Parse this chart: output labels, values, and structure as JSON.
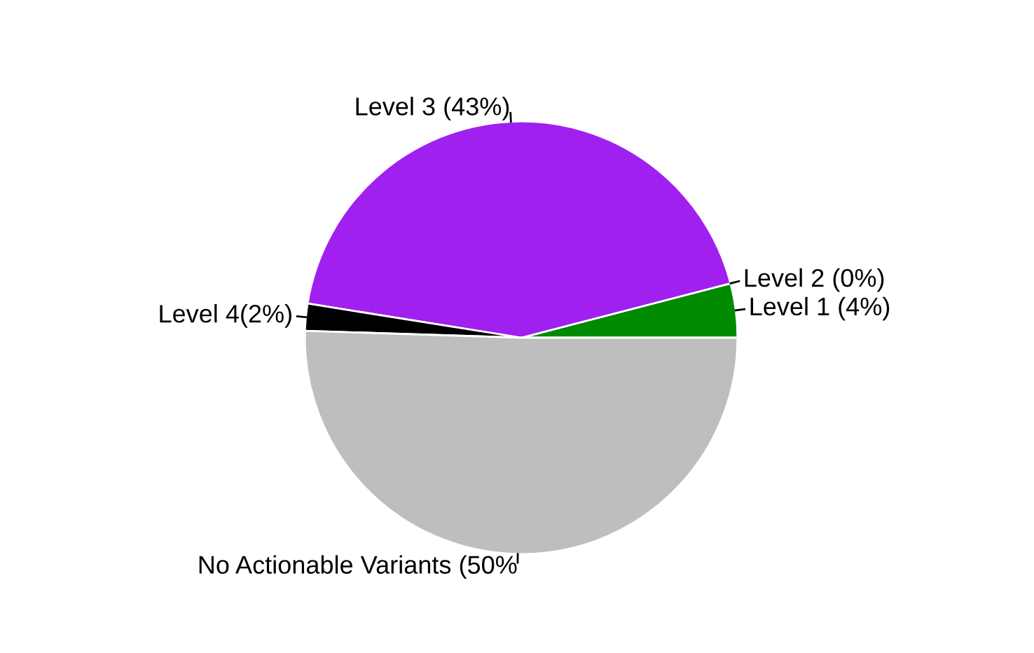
{
  "chart_data": {
    "type": "pie",
    "categories": [
      "Level 1 (4%)",
      "Level 2 (0%)",
      "Level 3 (43%)",
      "Level 4(2%)",
      "No Actionable Variants (50%"
    ],
    "values": [
      4,
      0,
      43,
      2,
      50
    ],
    "colors": [
      "#008a00",
      "#a855f7",
      "#a020f0",
      "#000000",
      "#bebebe"
    ]
  }
}
